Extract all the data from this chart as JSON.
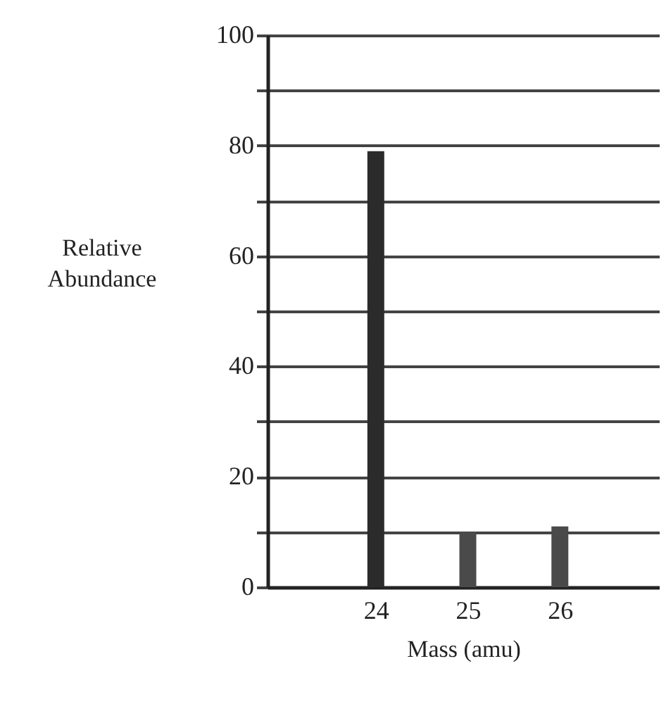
{
  "chart_data": {
    "type": "bar",
    "xlabel": "Mass (amu)",
    "ylabel": "Relative Abundance",
    "x": [
      24,
      25,
      26
    ],
    "values": [
      79,
      10,
      11
    ],
    "colors": [
      "#2b2b2b",
      "#4a4a4a",
      "#4a4a4a"
    ],
    "xlim": [
      22.9,
      27.0
    ],
    "xticks": [
      24,
      25,
      26
    ],
    "ylim": [
      0,
      100
    ],
    "yticks": [
      0,
      {
        "value": 10,
        "label": null
      },
      20,
      {
        "value": 30,
        "label": null
      },
      40,
      {
        "value": 50,
        "label": null
      },
      60,
      {
        "value": 70,
        "label": null
      },
      80,
      {
        "value": 90,
        "label": null
      },
      100
    ],
    "grid": "y"
  }
}
